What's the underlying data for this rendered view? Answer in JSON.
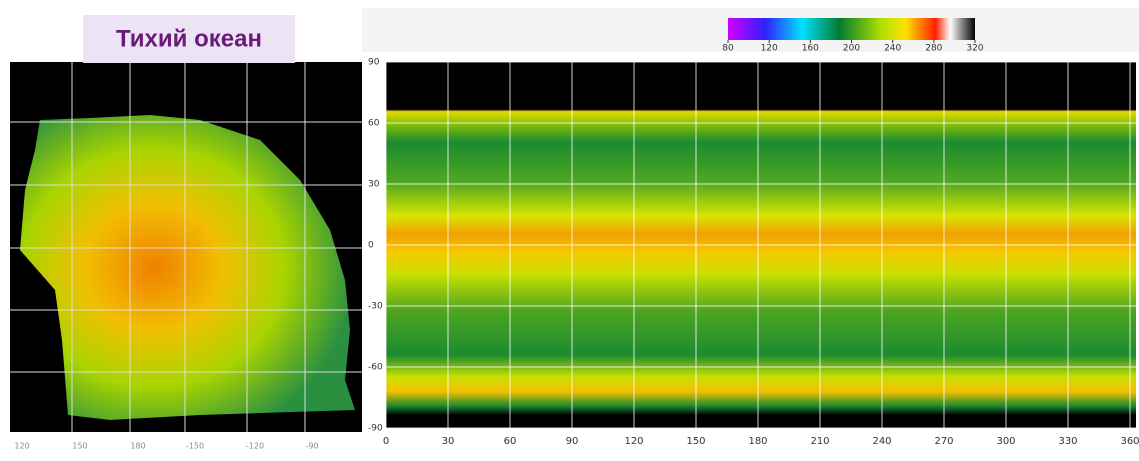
{
  "title": "Тихий океан",
  "colorbar": {
    "lim": [
      80,
      320
    ],
    "ticks": [
      80,
      120,
      160,
      200,
      240,
      280,
      320
    ]
  },
  "left_map": {
    "lon_labels": [
      "120",
      "150",
      "180",
      "-150",
      "-120",
      "-90"
    ]
  },
  "right_plot": {
    "xlim": [
      0,
      360
    ],
    "ylim": [
      -90,
      90
    ],
    "xticks": [
      0,
      30,
      60,
      90,
      120,
      150,
      180,
      210,
      240,
      270,
      300,
      330,
      360
    ],
    "yticks": [
      90,
      60,
      30,
      0,
      -30,
      -60,
      -90
    ]
  }
}
